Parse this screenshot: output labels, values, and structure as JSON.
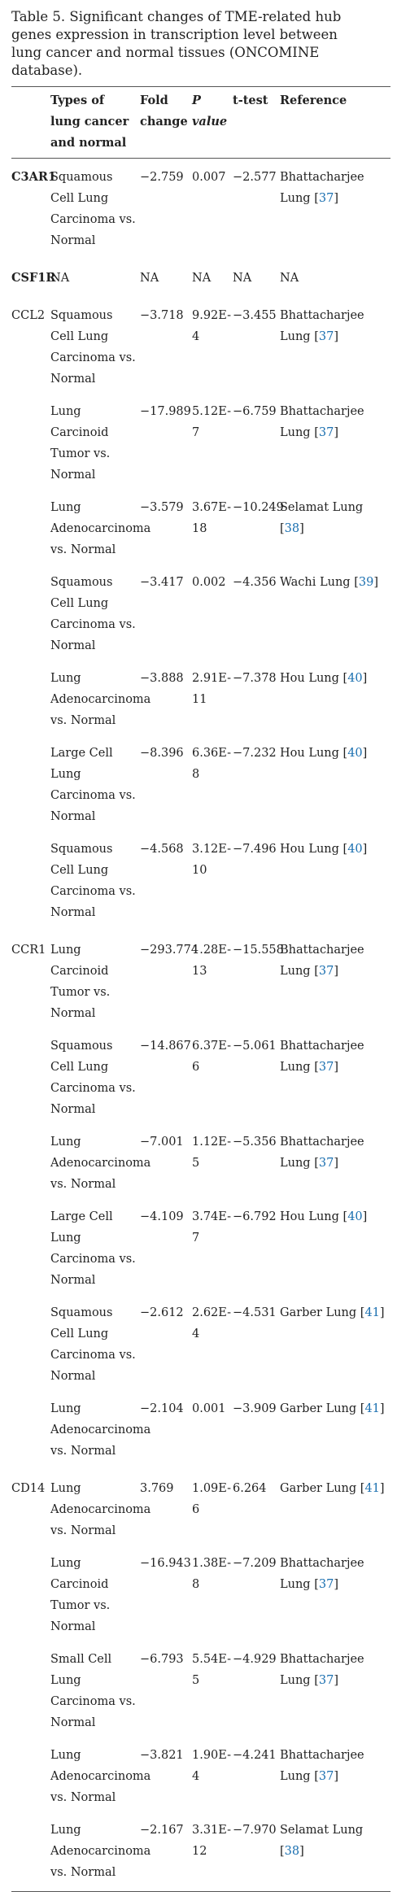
{
  "caption": "Table 5. Significant changes of TME-related hub genes expression in transcription level between lung cancer and normal tissues (ONCOMINE database).",
  "headers": {
    "gene": "",
    "type": "Types of lung cancer and normal",
    "fold": "Fold change",
    "p": "P value",
    "t": "t-test",
    "ref": "Reference"
  },
  "rows": [
    {
      "gene": "C3AR1",
      "type": "Squamous Cell Lung Carcinoma vs. Normal",
      "fold": "−2.759",
      "p": "0.007",
      "t": "−2.577",
      "ref_text": "Bhattacharjee Lung ",
      "ref_num": "37"
    },
    {
      "gene": "CSF1R",
      "type": "NA",
      "fold": "NA",
      "p": "NA",
      "t": "NA",
      "ref_text": "NA",
      "ref_num": ""
    },
    {
      "gene": "CCL2",
      "type": "Squamous Cell Lung Carcinoma vs. Normal",
      "fold": "−3.718",
      "p": "9.92E-4",
      "t": "−3.455",
      "ref_text": "Bhattacharjee Lung ",
      "ref_num": "37"
    },
    {
      "gene": "",
      "type": "Lung Carcinoid Tumor vs. Normal",
      "fold": "−17.989",
      "p": "5.12E-7",
      "t": "−6.759",
      "ref_text": "Bhattacharjee Lung ",
      "ref_num": "37"
    },
    {
      "gene": "",
      "type": "Lung Adenocarcinoma vs. Normal",
      "fold": "−3.579",
      "p": "3.67E-18",
      "t": "−10.249",
      "ref_text": "Selamat Lung ",
      "ref_num": "38"
    },
    {
      "gene": "",
      "type": "Squamous Cell Lung Carcinoma vs. Normal",
      "fold": "−3.417",
      "p": "0.002",
      "t": "−4.356",
      "ref_text": "Wachi Lung ",
      "ref_num": "39"
    },
    {
      "gene": "",
      "type": "Lung Adenocarcinoma vs. Normal",
      "fold": "−3.888",
      "p": "2.91E-11",
      "t": "−7.378",
      "ref_text": "Hou Lung ",
      "ref_num": "40"
    },
    {
      "gene": "",
      "type": "Large Cell Lung Carcinoma vs. Normal",
      "fold": "−8.396",
      "p": "6.36E-8",
      "t": "−7.232",
      "ref_text": "Hou Lung ",
      "ref_num": "40"
    },
    {
      "gene": "",
      "type": "Squamous Cell Lung Carcinoma vs. Normal",
      "fold": "−4.568",
      "p": "3.12E-10",
      "t": "−7.496",
      "ref_text": "Hou Lung ",
      "ref_num": "40"
    },
    {
      "gene": "CCR1",
      "type": "Lung Carcinoid Tumor vs. Normal",
      "fold": "−293.774",
      "p": "1.28E-13",
      "t": "−15.558",
      "ref_text": "Bhattacharjee Lung ",
      "ref_num": "37"
    },
    {
      "gene": "",
      "type": "Squamous Cell Lung Carcinoma vs. Normal",
      "fold": "−14.867",
      "p": "6.37E-6",
      "t": "−5.061",
      "ref_text": "Bhattacharjee Lung ",
      "ref_num": "37"
    },
    {
      "gene": "",
      "type": "Lung Adenocarcinoma vs. Normal",
      "fold": "−7.001",
      "p": "1.12E-5",
      "t": "−5.356",
      "ref_text": "Bhattacharjee Lung ",
      "ref_num": "37"
    },
    {
      "gene": "",
      "type": "Large Cell Lung Carcinoma vs. Normal",
      "fold": "−4.109",
      "p": "3.74E-7",
      "t": "−6.792",
      "ref_text": "Hou Lung ",
      "ref_num": "40"
    },
    {
      "gene": "",
      "type": "Squamous Cell Lung Carcinoma vs. Normal",
      "fold": "−2.612",
      "p": "2.62E-4",
      "t": "−4.531",
      "ref_text": "Garber Lung ",
      "ref_num": "41"
    },
    {
      "gene": "",
      "type": "Lung Adenocarcinoma vs. Normal",
      "fold": "−2.104",
      "p": "0.001",
      "t": "−3.909",
      "ref_text": "Garber Lung ",
      "ref_num": "41"
    },
    {
      "gene": "CD14",
      "type": "Lung Adenocarcinoma vs. Normal",
      "fold": "3.769",
      "p": "1.09E-6",
      "t": "6.264",
      "ref_text": "Garber Lung ",
      "ref_num": "41"
    },
    {
      "gene": "",
      "type": "Lung Carcinoid Tumor vs. Normal",
      "fold": "−16.943",
      "p": "1.38E-8",
      "t": "−7.209",
      "ref_text": "Bhattacharjee Lung ",
      "ref_num": "37"
    },
    {
      "gene": "",
      "type": "Small Cell Lung Carcinoma vs. Normal",
      "fold": "−6.793",
      "p": "5.54E-5",
      "t": "−4.929",
      "ref_text": "Bhattacharjee Lung ",
      "ref_num": "37"
    },
    {
      "gene": "",
      "type": "Lung Adenocarcinoma vs. Normal",
      "fold": "−3.821",
      "p": "1.90E-4",
      "t": "−4.241",
      "ref_text": "Bhattacharjee Lung ",
      "ref_num": "37"
    },
    {
      "gene": "",
      "type": "Lung Adenocarcinoma vs. Normal",
      "fold": "−2.167",
      "p": "3.31E-12",
      "t": "−7.970",
      "ref_text": "Selamat Lung ",
      "ref_num": "38"
    }
  ],
  "colors": {
    "text": "#222222",
    "link": "#1a6fb0",
    "rule": "#555555"
  }
}
